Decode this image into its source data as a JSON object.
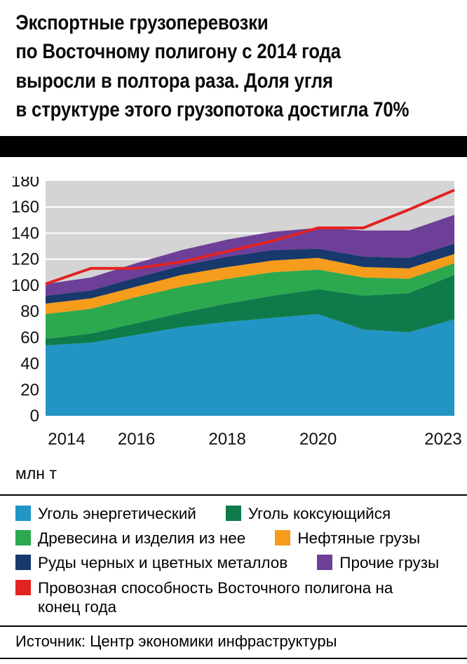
{
  "title_lines": [
    "Экспортные грузоперевозки",
    "по Восточному полигону с 2014 года",
    "выросли в полтора раза. Доля угля",
    "в структуре этого грузопотока достигла 70%"
  ],
  "units_label": "млн т",
  "source_label": "Источник: Центр экономики инфраструктуры",
  "chart_data": {
    "type": "area",
    "stacked": true,
    "title": "Экспортные грузоперевозки по Восточному полигону",
    "x": [
      2014,
      2015,
      2016,
      2017,
      2018,
      2019,
      2020,
      2021,
      2022,
      2023
    ],
    "x_tick_labels": [
      "2014",
      "2016",
      "2018",
      "2020",
      "2023"
    ],
    "ylabel": "млн т",
    "ylim": [
      0,
      180
    ],
    "y_ticks": [
      0,
      20,
      40,
      60,
      80,
      100,
      120,
      140,
      160,
      180
    ],
    "plot_background": "#d4d4d4",
    "grid_color": "#ffffff",
    "grid": "horizontal white lines",
    "legend_position": "bottom",
    "series": [
      {
        "name": "Уголь энергетический",
        "color": "#2295c5",
        "values": [
          54,
          56,
          62,
          68,
          72,
          75,
          78,
          66,
          64,
          74
        ]
      },
      {
        "name": "Уголь коксующийся",
        "color": "#0f7b4b",
        "values": [
          5,
          7,
          9,
          11,
          14,
          17,
          19,
          26,
          30,
          34
        ]
      },
      {
        "name": "Древесина и изделия из нее",
        "color": "#2ca94f",
        "values": [
          19,
          19,
          20,
          20,
          19,
          18,
          15,
          14,
          11,
          9
        ]
      },
      {
        "name": "Нефтяные грузы",
        "color": "#f59c1c",
        "values": [
          8,
          8,
          8,
          9,
          9,
          9,
          9,
          8,
          8,
          7
        ]
      },
      {
        "name": "Руды черных и цветных металлов",
        "color": "#17396b",
        "values": [
          6,
          6,
          7,
          7,
          8,
          8,
          7,
          8,
          8,
          8
        ]
      },
      {
        "name": "Прочие грузы",
        "color": "#6e3f98",
        "values": [
          9,
          10,
          11,
          12,
          13,
          14,
          16,
          20,
          21,
          22
        ]
      }
    ],
    "line_series": {
      "name": "Провозная способность Восточного полигона на конец года",
      "color": "#e32222",
      "values": [
        101,
        113,
        113,
        118,
        126,
        134,
        144,
        144,
        158,
        173
      ]
    }
  }
}
